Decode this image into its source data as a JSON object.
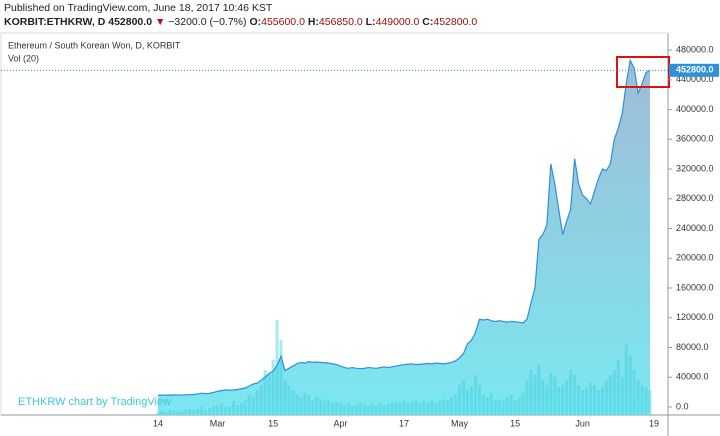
{
  "header": {
    "published": "Published on TradingView.com, June 18, 2017 10:46 KST",
    "symbol": "KORBIT:ETHKRW, D",
    "last": "452800.0",
    "arrow": "▼",
    "change": "−3200.0 (−0.7%)",
    "open_label": "O:",
    "open": "455600.0",
    "high_label": "H:",
    "high": "456850.0",
    "low_label": "L:",
    "low": "449000.0",
    "close_label": "C:",
    "close": "452800.0"
  },
  "chart_data": {
    "type": "area",
    "title": "Ethereum / South Korean Won, D, KORBIT",
    "watermark": "ETHKRW chart by TradingView",
    "color": "#2f8fd8",
    "fill_colors": [
      "#9bb8d4",
      "#74e6f0"
    ],
    "categories": [
      "14",
      null,
      null,
      null,
      null,
      null,
      null,
      null,
      null,
      null,
      null,
      null,
      null,
      null,
      null,
      "Mar",
      null,
      null,
      null,
      null,
      null,
      null,
      null,
      null,
      null,
      null,
      null,
      null,
      null,
      "15",
      null,
      null,
      null,
      null,
      null,
      null,
      null,
      null,
      null,
      null,
      null,
      null,
      null,
      null,
      null,
      null,
      "Apr",
      null,
      null,
      null,
      null,
      null,
      null,
      null,
      null,
      null,
      null,
      null,
      null,
      null,
      null,
      null,
      "17",
      null,
      null,
      null,
      null,
      null,
      null,
      null,
      null,
      null,
      null,
      null,
      null,
      null,
      "May",
      null,
      null,
      null,
      null,
      null,
      null,
      null,
      null,
      null,
      null,
      null,
      null,
      null,
      "15",
      null,
      null,
      null,
      null,
      null,
      null,
      null,
      null,
      null,
      null,
      null,
      null,
      null,
      null,
      null,
      null,
      "Jun",
      null,
      null,
      null,
      null,
      null,
      null,
      null,
      null,
      null,
      null,
      null,
      null,
      null,
      null,
      null,
      null,
      null,
      "19"
    ],
    "values": [
      15800,
      15900,
      16000,
      15900,
      16100,
      16200,
      16000,
      16300,
      16500,
      16800,
      17500,
      18500,
      18000,
      18300,
      19500,
      21000,
      22000,
      23000,
      22500,
      22800,
      23500,
      24500,
      25500,
      28000,
      31000,
      32000,
      36000,
      40000,
      45000,
      48000,
      56000,
      68000,
      49000,
      52000,
      55000,
      58000,
      60000,
      59000,
      61000,
      60000,
      60500,
      60000,
      59500,
      59000,
      58000,
      57000,
      55000,
      53000,
      52000,
      53000,
      52000,
      51500,
      52000,
      53000,
      52500,
      52000,
      53000,
      54000,
      53000,
      54000,
      55000,
      56000,
      57000,
      57500,
      58000,
      57000,
      57500,
      58000,
      58500,
      58000,
      59000,
      58500,
      58000,
      59000,
      60000,
      62000,
      66000,
      72000,
      85000,
      90000,
      100000,
      118000,
      117000,
      118000,
      116000,
      115000,
      116000,
      115000,
      114000,
      115000,
      114500,
      114000,
      113000,
      118000,
      140000,
      160000,
      226000,
      232000,
      245000,
      327000,
      300000,
      265000,
      232000,
      250000,
      266000,
      334000,
      300000,
      285000,
      280000,
      273000,
      290000,
      307000,
      320000,
      318000,
      327000,
      360000,
      375000,
      395000,
      435000,
      466000,
      456000,
      422000,
      435000,
      450000,
      452800,
      null
    ],
    "volume": {
      "name": "Vol (20)",
      "color": "#3fcfdc",
      "values": [
        3,
        4,
        3,
        5,
        4,
        3,
        4,
        5,
        6,
        5,
        6,
        8,
        5,
        7,
        9,
        10,
        12,
        8,
        9,
        14,
        10,
        12,
        15,
        20,
        18,
        25,
        30,
        45,
        40,
        55,
        95,
        75,
        35,
        30,
        25,
        20,
        18,
        22,
        20,
        15,
        18,
        16,
        14,
        15,
        12,
        13,
        12,
        10,
        11,
        9,
        10,
        12,
        10,
        9,
        11,
        10,
        12,
        10,
        11,
        12,
        13,
        12,
        14,
        12,
        13,
        15,
        12,
        14,
        13,
        15,
        12,
        14,
        16,
        15,
        18,
        20,
        30,
        35,
        25,
        28,
        40,
        30,
        20,
        18,
        22,
        15,
        16,
        14,
        18,
        20,
        15,
        17,
        22,
        35,
        45,
        40,
        50,
        35,
        30,
        42,
        38,
        28,
        30,
        35,
        45,
        40,
        30,
        25,
        28,
        32,
        30,
        25,
        28,
        35,
        40,
        45,
        55,
        38,
        70,
        60,
        45,
        35,
        30,
        28,
        25,
        null
      ]
    },
    "last_value_label": {
      "value": 452800,
      "label": "452800.0"
    },
    "ylim": [
      -10800,
      503000
    ],
    "yticks": [
      {
        "value": 0,
        "label": "0.0"
      },
      {
        "value": 40000,
        "label": "40000.0"
      },
      {
        "value": 80000,
        "label": "80000.0"
      },
      {
        "value": 120000,
        "label": "120000.0"
      },
      {
        "value": 160000,
        "label": "160000.0"
      },
      {
        "value": 200000,
        "label": "200000.0"
      },
      {
        "value": 240000,
        "label": "240000.0"
      },
      {
        "value": 280000,
        "label": "280000.0"
      },
      {
        "value": 320000,
        "label": "320000.0"
      },
      {
        "value": 360000,
        "label": "360000.0"
      },
      {
        "value": 400000,
        "label": "400000.0"
      },
      {
        "value": 440000,
        "label": "440000.0"
      },
      {
        "value": 480000,
        "label": "480000.0"
      }
    ]
  }
}
